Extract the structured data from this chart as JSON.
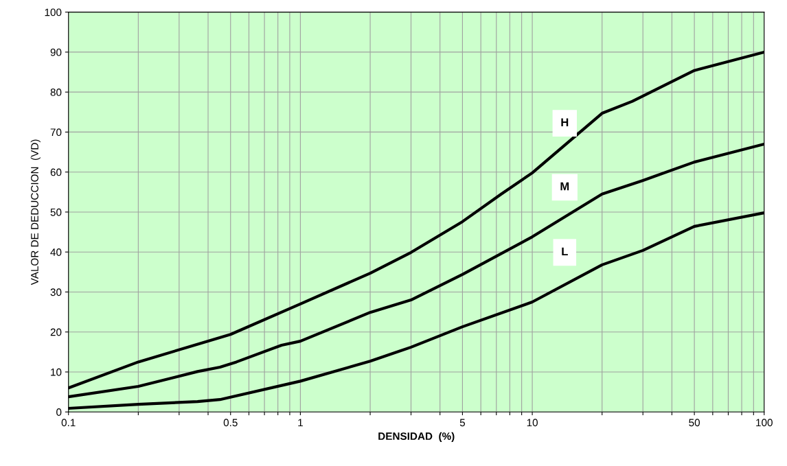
{
  "chart_data": {
    "type": "line",
    "xlabel": "DENSIDAD  (%)",
    "ylabel": "VALOR DE DEDUCCION  (VD)",
    "log": "x",
    "grid": true,
    "legend": false,
    "marker": "none",
    "line_style": "solid",
    "xlim": [
      0.1,
      100
    ],
    "ylim": [
      0,
      100
    ],
    "xticks": [
      0.1,
      {
        "value": 0.2,
        "label": null
      },
      {
        "value": 0.3,
        "label": null
      },
      {
        "value": 0.4,
        "label": null
      },
      0.5,
      {
        "value": 0.6,
        "label": null
      },
      {
        "value": 0.7,
        "label": null
      },
      {
        "value": 0.8,
        "label": null
      },
      {
        "value": 0.9,
        "label": null
      },
      1,
      {
        "value": 2,
        "label": null
      },
      {
        "value": 3,
        "label": null
      },
      {
        "value": 4,
        "label": null
      },
      5,
      {
        "value": 6,
        "label": null
      },
      {
        "value": 7,
        "label": null
      },
      {
        "value": 8,
        "label": null
      },
      {
        "value": 9,
        "label": null
      },
      10,
      {
        "value": 20,
        "label": null
      },
      {
        "value": 30,
        "label": null
      },
      {
        "value": 40,
        "label": null
      },
      50,
      {
        "value": 60,
        "label": null
      },
      {
        "value": 70,
        "label": null
      },
      {
        "value": 80,
        "label": null
      },
      {
        "value": 90,
        "label": null
      },
      100
    ],
    "yticks": [
      0,
      10,
      20,
      30,
      40,
      50,
      60,
      70,
      80,
      90,
      100
    ],
    "series": [
      {
        "name": "H",
        "color": "#000000",
        "x": [
          0.1,
          0.2,
          0.5,
          1,
          2,
          3,
          5,
          7.35,
          10,
          20,
          27,
          50,
          100
        ],
        "values": [
          6,
          12.5,
          19.4,
          27,
          34.7,
          39.9,
          47.6,
          54.5,
          59.8,
          74.7,
          77.7,
          85.4,
          90
        ]
      },
      {
        "name": "M",
        "color": "#000000",
        "x": [
          0.1,
          0.2,
          0.36,
          0.45,
          0.53,
          0.83,
          1,
          2,
          3,
          5,
          10,
          20,
          30,
          50,
          100
        ],
        "values": [
          3.8,
          6.4,
          10.1,
          11.2,
          12.5,
          16.7,
          17.7,
          24.9,
          28,
          34.4,
          43.8,
          54.5,
          57.9,
          62.5,
          67
        ]
      },
      {
        "name": "L",
        "color": "#000000",
        "x": [
          0.1,
          0.2,
          0.36,
          0.45,
          1,
          2,
          3,
          5,
          10,
          20,
          30,
          50,
          100
        ],
        "values": [
          0.9,
          1.9,
          2.6,
          3.1,
          7.7,
          12.7,
          16.2,
          21.3,
          27.5,
          36.8,
          40.4,
          46.4,
          49.8
        ]
      }
    ]
  }
}
